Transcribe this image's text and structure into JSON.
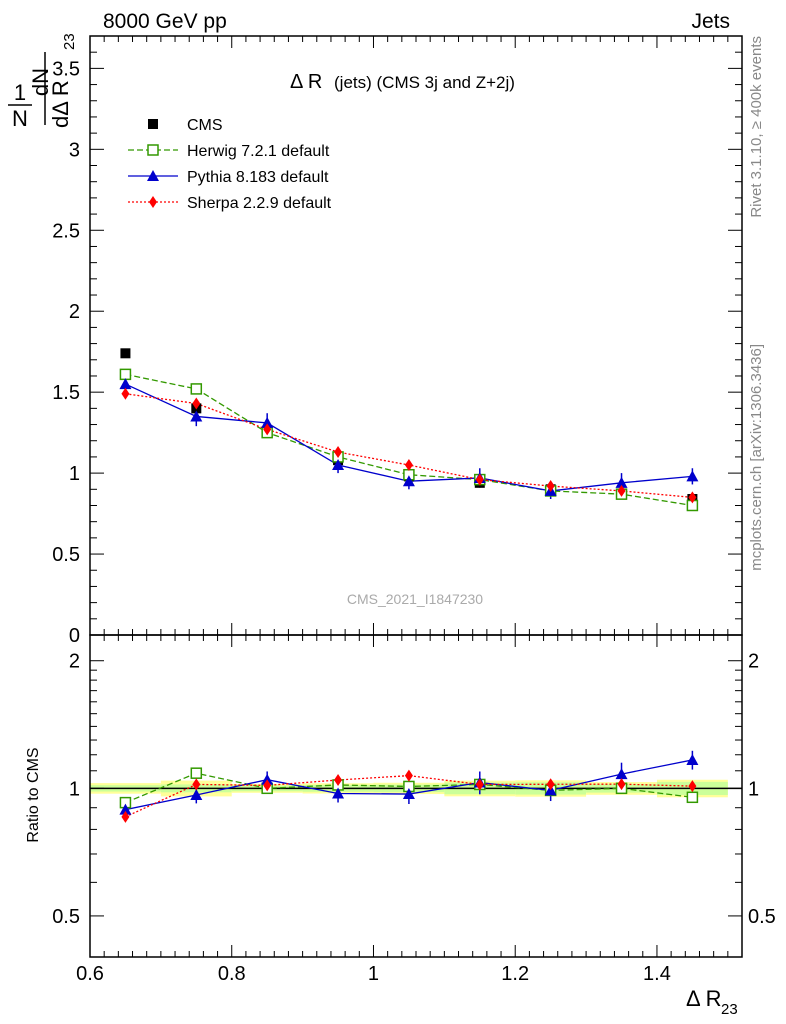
{
  "header": {
    "left": "8000 GeV pp",
    "right": "Jets"
  },
  "side_labels": {
    "rivet": "Rivet 3.1.10, ≥ 400k events",
    "mcplots": "mcplots.cern.ch [arXiv:1306.3436]"
  },
  "chart_data": {
    "type": "line",
    "title": "Δ R (jets) (CMS 3j and Z+2j)",
    "title_main": "Δ R",
    "title_sub": " (jets) (CMS 3j and Z+2j)",
    "watermark": "CMS_2021_I1847230",
    "xlabel": "Δ R",
    "xlabel_sub": "23",
    "ylabel": "1/N dN/dΔ R23",
    "ylabel_parts": {
      "one": "1",
      "n": "N",
      "dN": "dN",
      "d": "dΔ R",
      "sub": "23"
    },
    "ratio_ylabel": "Ratio to CMS",
    "xlim": [
      0.6,
      1.52
    ],
    "ylim": [
      0,
      3.7
    ],
    "ratio_ylim": [
      0.4,
      2.3
    ],
    "x_ticks": [
      "0.6",
      "0.8",
      "1",
      "1.2",
      "1.4"
    ],
    "y_ticks": [
      "0",
      "0.5",
      "1",
      "1.5",
      "2",
      "2.5",
      "3",
      "3.5"
    ],
    "ratio_y_ticks": [
      "0.5",
      "1",
      "2"
    ],
    "x": [
      0.65,
      0.75,
      0.85,
      0.95,
      1.05,
      1.15,
      1.25,
      1.35,
      1.45
    ],
    "bin_edges": [
      0.6,
      0.7,
      0.8,
      0.9,
      1.0,
      1.1,
      1.2,
      1.3,
      1.4,
      1.5
    ],
    "reference": {
      "name": "CMS",
      "values": [
        1.74,
        1.4,
        1.25,
        1.08,
        0.98,
        0.94,
        0.9,
        0.87,
        0.84
      ],
      "band_inner": [
        0.03,
        0.03,
        0.02,
        0.02,
        0.02,
        0.03,
        0.03,
        0.02,
        0.03
      ],
      "band_outer": [
        0.05,
        0.06,
        0.03,
        0.03,
        0.03,
        0.04,
        0.04,
        0.03,
        0.04
      ]
    },
    "series": [
      {
        "name": "Herwig 7.2.1 default",
        "color": "#339900",
        "marker": "open-square",
        "linestyle": "dashed",
        "values": [
          1.61,
          1.52,
          1.25,
          1.1,
          0.99,
          0.96,
          0.89,
          0.87,
          0.8
        ],
        "errors": [
          0,
          0,
          0,
          0,
          0,
          0,
          0,
          0,
          0
        ]
      },
      {
        "name": "Pythia 8.183 default",
        "color": "#0000cc",
        "marker": "triangle",
        "linestyle": "solid",
        "values": [
          1.55,
          1.35,
          1.31,
          1.05,
          0.95,
          0.97,
          0.89,
          0.94,
          0.98
        ],
        "errors": [
          0.06,
          0.06,
          0.06,
          0.05,
          0.05,
          0.06,
          0.05,
          0.06,
          0.05
        ]
      },
      {
        "name": "Sherpa 2.2.9 default",
        "color": "#ff0000",
        "marker": "diamond",
        "linestyle": "dotted",
        "values": [
          1.49,
          1.43,
          1.27,
          1.13,
          1.05,
          0.96,
          0.92,
          0.89,
          0.85
        ],
        "errors": [
          0.02,
          0.02,
          0.02,
          0.02,
          0.02,
          0.02,
          0.02,
          0.02,
          0.02
        ]
      }
    ]
  }
}
